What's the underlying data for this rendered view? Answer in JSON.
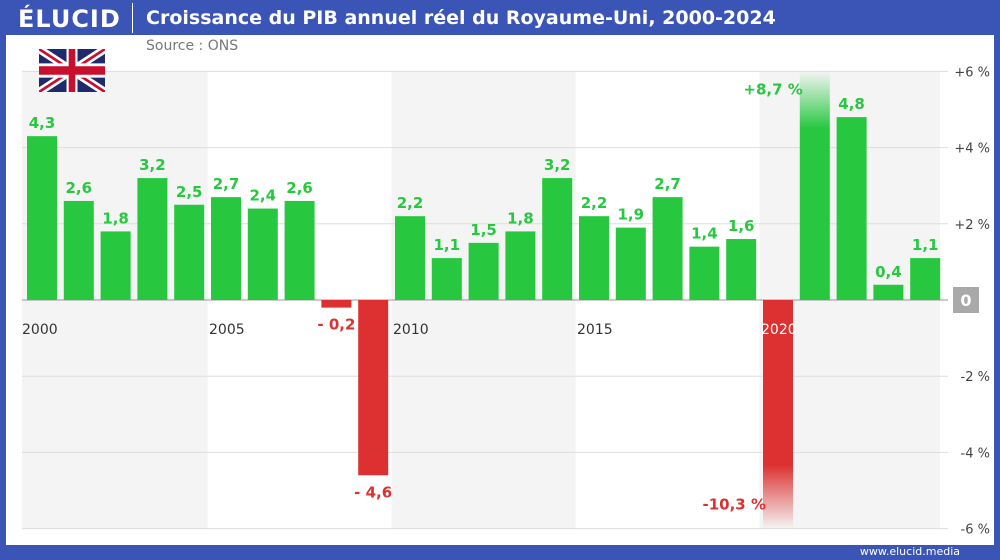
{
  "header": {
    "logo": "ÉLUCID",
    "title": "Croissance du PIB annuel réel du Royaume-Uni, 2000-2024",
    "source": "Source : ONS"
  },
  "footer": {
    "url": "www.elucid.media"
  },
  "flag": "united-kingdom-flag",
  "colors": {
    "frame": "#3a55b6",
    "positive": "#27c840",
    "negative": "#dd3030",
    "band": "#f4f4f4"
  },
  "chart_data": {
    "type": "bar",
    "title": "Croissance du PIB annuel réel du Royaume-Uni, 2000-2024",
    "categories": [
      2000,
      2001,
      2002,
      2003,
      2004,
      2005,
      2006,
      2007,
      2008,
      2009,
      2010,
      2011,
      2012,
      2013,
      2014,
      2015,
      2016,
      2017,
      2018,
      2019,
      2020,
      2021,
      2022,
      2023,
      2024
    ],
    "values": [
      4.3,
      2.6,
      1.8,
      3.2,
      2.5,
      2.7,
      2.4,
      2.6,
      -0.2,
      -4.6,
      2.2,
      1.1,
      1.5,
      1.8,
      3.2,
      2.2,
      1.9,
      2.7,
      1.4,
      1.6,
      -10.3,
      8.7,
      4.8,
      0.4,
      1.1
    ],
    "data_labels": [
      "4,3",
      "2,6",
      "1,8",
      "3,2",
      "2,5",
      "2,7",
      "2,4",
      "2,6",
      "- 0,2",
      "- 4,6",
      "2,2",
      "1,1",
      "1,5",
      "1,8",
      "3,2",
      "2,2",
      "1,9",
      "2,7",
      "1,4",
      "1,6",
      "-10,3 %",
      "+8,7 %",
      "4,8",
      "0,4",
      "1,1"
    ],
    "x_tick_labels": [
      "2000",
      "2005",
      "2010",
      "2015",
      "2020"
    ],
    "y_ticks": [
      6,
      4,
      2,
      0,
      -2,
      -4,
      -6
    ],
    "y_tick_labels": [
      "+6 %",
      "+4 %",
      "+2 %",
      "0",
      "-2 %",
      "-4 %",
      "-6 %"
    ],
    "ylim": [
      -6,
      6
    ],
    "grid": true,
    "y_axis_side": "right"
  }
}
